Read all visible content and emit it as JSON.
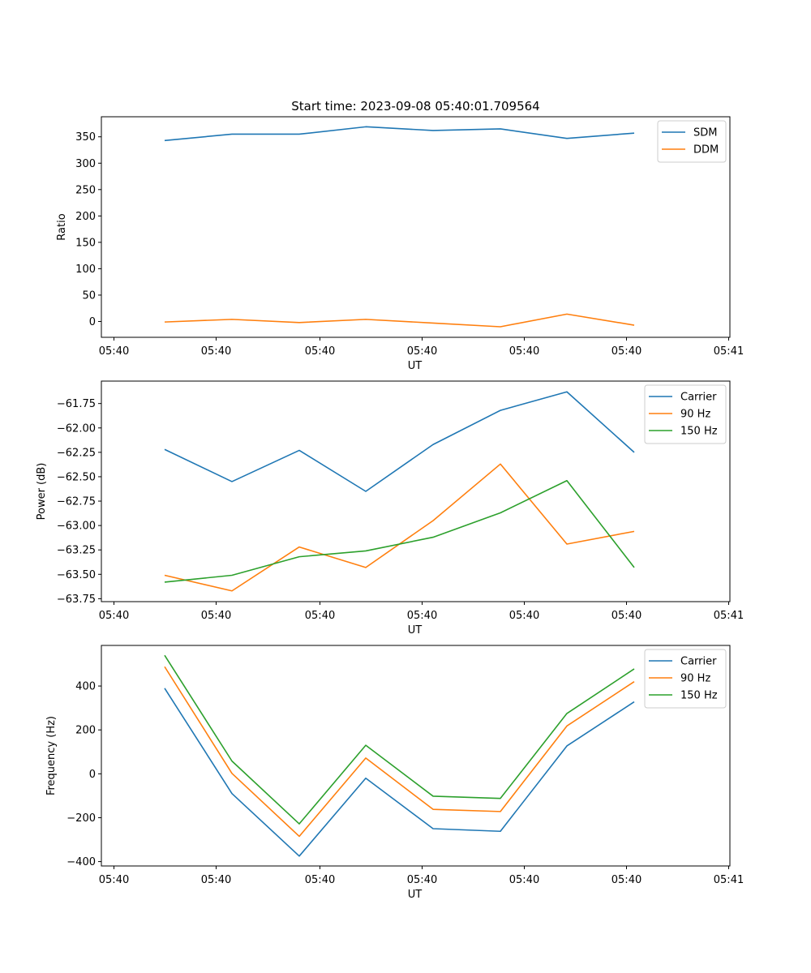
{
  "title": "Start time: 2023-09-08 05:40:01.709564",
  "chart_data": [
    {
      "type": "line",
      "xlabel": "UT",
      "ylabel": "Ratio",
      "xticklabels": [
        "05:40",
        "05:40",
        "05:40",
        "05:40",
        "05:40",
        "05:40",
        "05:41"
      ],
      "ylim": [
        -30,
        388
      ],
      "yticks": [
        0,
        50,
        100,
        150,
        200,
        250,
        300,
        350
      ],
      "legend": "upper right",
      "series": [
        {
          "name": "SDM",
          "color": "#1f77b4",
          "values": [
            343,
            355,
            355,
            369,
            362,
            365,
            347,
            357
          ]
        },
        {
          "name": "DDM",
          "color": "#ff7f0e",
          "values": [
            -1,
            4,
            -2,
            4,
            -3,
            -10,
            14,
            -7
          ]
        }
      ]
    },
    {
      "type": "line",
      "xlabel": "UT",
      "ylabel": "Power (dB)",
      "xticklabels": [
        "05:40",
        "05:40",
        "05:40",
        "05:40",
        "05:40",
        "05:40",
        "05:41"
      ],
      "ylim": [
        -63.78,
        -61.52
      ],
      "yticks": [
        -63.75,
        -63.5,
        -63.25,
        -63.0,
        -62.75,
        -62.5,
        -62.25,
        -62.0,
        -61.75
      ],
      "ytickformat": 2,
      "legend": "upper right",
      "series": [
        {
          "name": "Carrier",
          "color": "#1f77b4",
          "values": [
            -62.22,
            -62.55,
            -62.23,
            -62.65,
            -62.17,
            -61.82,
            -61.63,
            -62.25
          ]
        },
        {
          "name": "90 Hz",
          "color": "#ff7f0e",
          "values": [
            -63.51,
            -63.67,
            -63.22,
            -63.43,
            -62.95,
            -62.37,
            -63.19,
            -63.06
          ]
        },
        {
          "name": "150 Hz",
          "color": "#2ca02c",
          "values": [
            -63.58,
            -63.51,
            -63.32,
            -63.26,
            -63.12,
            -62.87,
            -62.54,
            -63.43
          ]
        }
      ]
    },
    {
      "type": "line",
      "xlabel": "UT",
      "ylabel": "Frequency (Hz)",
      "xticklabels": [
        "05:40",
        "05:40",
        "05:40",
        "05:40",
        "05:40",
        "05:40",
        "05:41"
      ],
      "ylim": [
        -420,
        585
      ],
      "yticks": [
        -400,
        -200,
        0,
        200,
        400
      ],
      "legend": "upper right",
      "series": [
        {
          "name": "Carrier",
          "color": "#1f77b4",
          "values": [
            390,
            -90,
            -375,
            -20,
            -250,
            -262,
            127,
            328
          ]
        },
        {
          "name": "90 Hz",
          "color": "#ff7f0e",
          "values": [
            488,
            2,
            -285,
            72,
            -162,
            -172,
            218,
            420
          ]
        },
        {
          "name": "150 Hz",
          "color": "#2ca02c",
          "values": [
            540,
            58,
            -228,
            130,
            -102,
            -112,
            275,
            478
          ]
        }
      ]
    }
  ]
}
